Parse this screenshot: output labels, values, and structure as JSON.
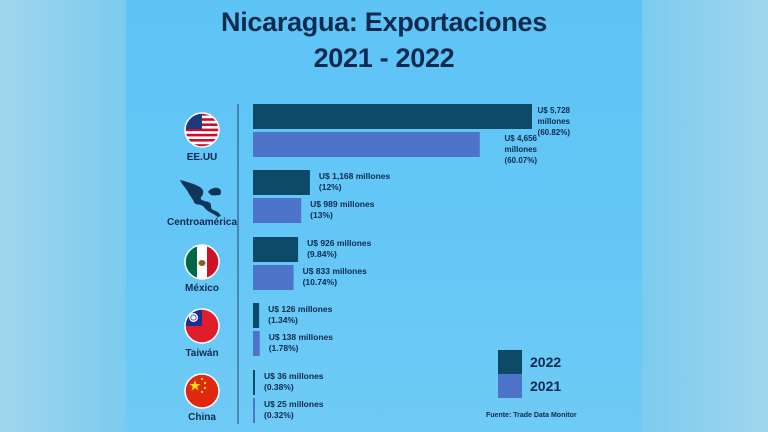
{
  "title_line1": "Nicaragua: Exportaciones",
  "title_line2": "2021 - 2022",
  "source": "Fuente: Trade Data Monitor",
  "legend": [
    {
      "label": "2022",
      "color": "#0c4a67"
    },
    {
      "label": "2021",
      "color": "#4d74c8"
    }
  ],
  "chart_data": {
    "type": "bar",
    "orientation": "horizontal",
    "title": "Nicaragua: Exportaciones 2021 - 2022",
    "categories": [
      "EE.UU",
      "Centroamérica",
      "México",
      "Taiwán",
      "China"
    ],
    "category_icons": [
      "us-flag-icon",
      "central-america-map-icon",
      "mexico-flag-icon",
      "taiwan-flag-icon",
      "china-flag-icon"
    ],
    "series": [
      {
        "name": "2022",
        "color": "#0c4a67",
        "values": [
          5728,
          1168,
          926,
          126,
          36
        ],
        "labels": [
          [
            "U$ 5,728",
            "millones",
            "(60.82%)"
          ],
          [
            "U$ 1,168 millones",
            "(12%)"
          ],
          [
            "U$ 926 millones",
            "(9.84%)"
          ],
          [
            "U$ 126 millones",
            "(1.34%)"
          ],
          [
            "U$ 36 millones",
            "(0.38%)"
          ]
        ]
      },
      {
        "name": "2021",
        "color": "#4d74c8",
        "values": [
          4656,
          989,
          833,
          138,
          25
        ],
        "labels": [
          [
            "U$ 4,656",
            "millones",
            "(60.07%)"
          ],
          [
            "U$ 989 millones",
            "(13%)"
          ],
          [
            "U$ 833 millones",
            "(10.74%)"
          ],
          [
            "U$ 138 millones",
            "(1.78%)"
          ],
          [
            "U$ 25 millones",
            "(0.32%)"
          ]
        ]
      }
    ],
    "xlim": [
      0,
      5728
    ],
    "legend_position": "bottom-right",
    "grid": false
  }
}
